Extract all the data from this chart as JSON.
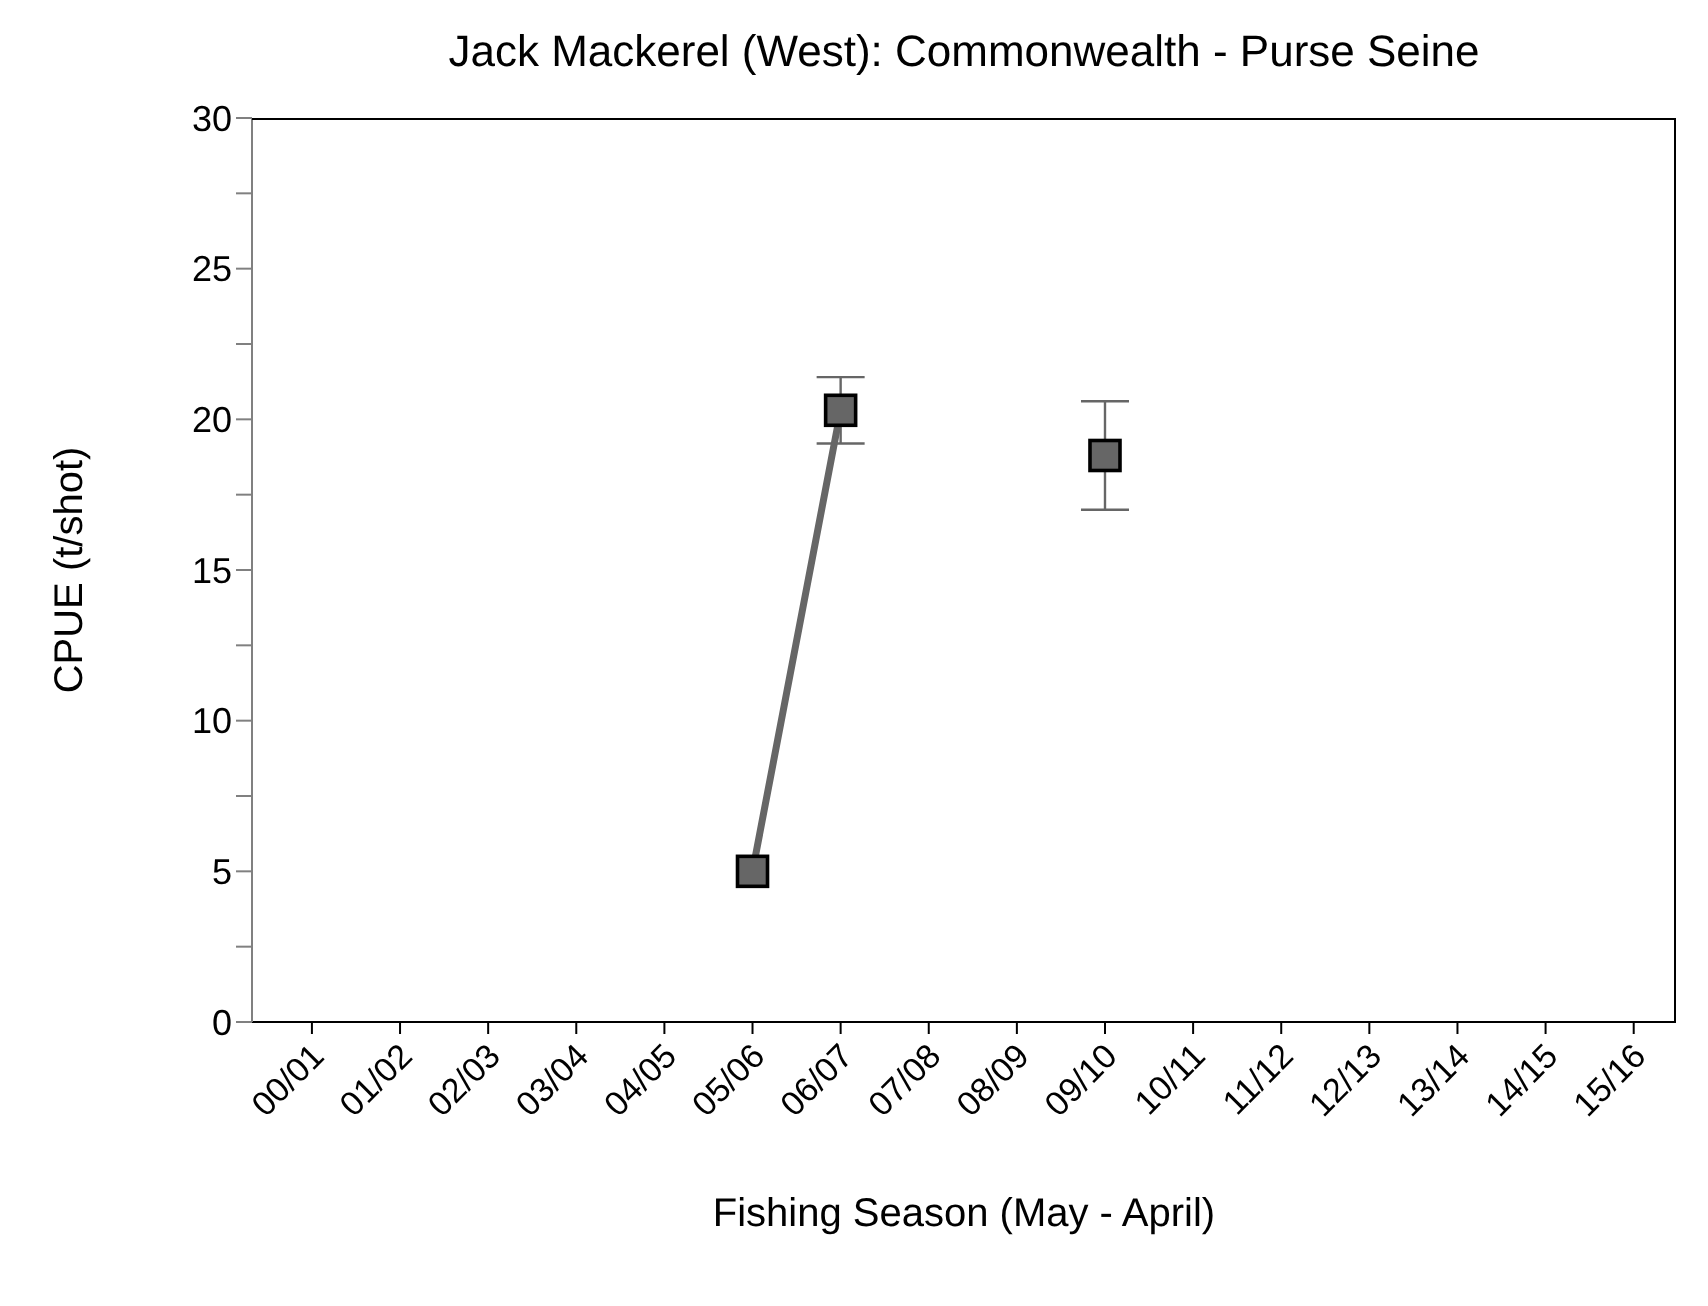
{
  "chart_data": {
    "type": "line",
    "title": "Jack Mackerel (West): Commonwealth - Purse Seine",
    "xlabel": "Fishing Season (May - April)",
    "ylabel": "CPUE (t/shot)",
    "categories": [
      "00/01",
      "01/02",
      "02/03",
      "03/04",
      "04/05",
      "05/06",
      "06/07",
      "07/08",
      "08/09",
      "09/10",
      "10/11",
      "11/12",
      "12/13",
      "13/14",
      "14/15",
      "15/16"
    ],
    "series": [
      {
        "color": "#666666",
        "values": [
          null,
          null,
          null,
          null,
          null,
          5.0,
          20.3,
          null,
          null,
          18.8,
          null,
          null,
          null,
          null,
          null,
          null
        ],
        "errors": [
          null,
          null,
          null,
          null,
          null,
          null,
          [
            19.2,
            21.4
          ],
          null,
          null,
          [
            17.0,
            20.6
          ],
          null,
          null,
          null,
          null,
          null,
          null
        ]
      }
    ],
    "ylim": [
      0,
      30
    ],
    "yticks": [
      0,
      {
        "value": 2.5,
        "label": null
      },
      5,
      {
        "value": 7.5,
        "label": null
      },
      10,
      {
        "value": 12.5,
        "label": null
      },
      15,
      {
        "value": 17.5,
        "label": null
      },
      20,
      {
        "value": 22.5,
        "label": null
      },
      25,
      {
        "value": 27.5,
        "label": null
      },
      30
    ],
    "marker": "square",
    "line_style": "solid"
  }
}
